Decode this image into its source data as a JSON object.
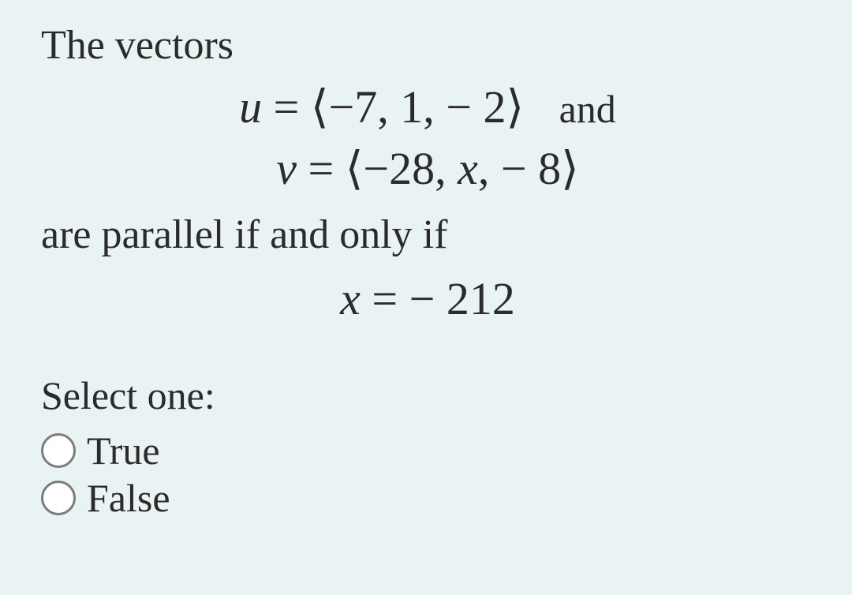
{
  "question": {
    "intro": "The vectors",
    "vector_u": {
      "var": "u",
      "eq": "=",
      "open": "⟨",
      "c1": "−7,",
      "c2": "1,",
      "c3": "− 2",
      "close": "⟩",
      "tail": "and"
    },
    "vector_v": {
      "var": "v",
      "eq": "=",
      "open": "⟨",
      "c1": "−28,",
      "c2_var": "x",
      "c2_comma": ",",
      "c3": "− 8",
      "close": "⟩"
    },
    "condition": "are parallel if and only if",
    "answer": {
      "var": "x",
      "eq": "=",
      "val": "− 212"
    }
  },
  "choices": {
    "prompt": "Select one:",
    "true": "True",
    "false": "False"
  },
  "colors": {
    "bg": "#eaf3f3",
    "text": "#2b2b2b",
    "radio_border": "#7c7c7c"
  }
}
